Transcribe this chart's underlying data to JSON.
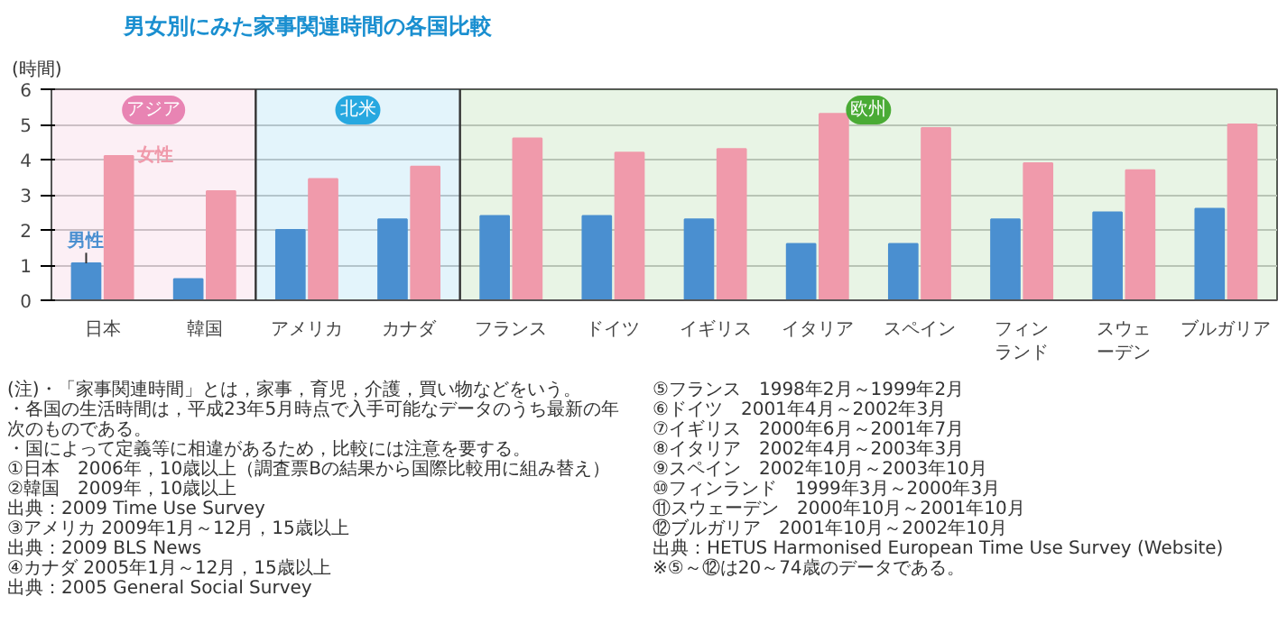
{
  "chart_data": {
    "type": "bar",
    "title": "男女別にみた家事関連時間の各国比較",
    "ylabel": "(時間)",
    "categories": [
      "日本",
      "韓国",
      "アメリカ",
      "カナダ",
      "フランス",
      "ドイツ",
      "イギリス",
      "イタリア",
      "スペイン",
      "フィンランド",
      "スウェーデン",
      "ブルガリア"
    ],
    "series": [
      {
        "name": "男性",
        "color": "#4a8fd0",
        "values": [
          1.05,
          0.6,
          2.0,
          2.3,
          2.4,
          2.4,
          2.3,
          1.6,
          1.6,
          2.3,
          2.5,
          2.6
        ]
      },
      {
        "name": "女性",
        "color": "#f09aab",
        "values": [
          4.1,
          3.1,
          3.45,
          3.8,
          4.6,
          4.2,
          4.3,
          5.3,
          4.9,
          3.9,
          3.7,
          5.0
        ]
      }
    ],
    "ylim": [
      0,
      6
    ],
    "yticks": [
      0,
      1,
      2,
      3,
      4,
      5,
      6
    ],
    "grid": "y",
    "bands": [
      {
        "axis": "x",
        "from": "日本",
        "to": "韓国",
        "label": "アジア",
        "color": "#e884b3"
      },
      {
        "axis": "x",
        "from": "アメリカ",
        "to": "カナダ",
        "label": "北米",
        "color": "#27a8e0"
      },
      {
        "axis": "x",
        "from": "フランス",
        "to": "ブルガリア",
        "label": "欧州",
        "color": "#4aab35"
      }
    ],
    "annotations": [
      "(注)・「家事関連時間」とは，家事，育児，介護，買い物などをいう。",
      "・各国の生活時間は，平成23年5月時点で入手可能なデータのうち最新の年次のものである。",
      "・国によって定義等に相違があるため，比較には注意を要する。",
      "①日本　2006年，10歳以上（調査票Bの結果から国際比較用に組み替え）",
      "②韓国　2009年，10歳以上",
      "出典：2009 Time Use Survey",
      "③アメリカ 2009年1月～12月，15歳以上",
      "出典：2009 BLS News",
      "④カナダ 2005年1月～12月，15歳以上",
      "出典：2005 General Social Survey",
      "⑤フランス　1998年2月～1999年2月",
      "⑥ドイツ　2001年4月～2002年3月",
      "⑦イギリス　2000年6月～2001年7月",
      "⑧イタリア　2002年4月～2003年3月",
      "⑨スペイン　2002年10月～2003年10月",
      "⑩フィンランド　1999年3月～2000年3月",
      "⑪スウェーデン　2000年10月～2001年10月",
      "⑫ブルガリア　2001年10月～2002年10月",
      "出典：HETUS Harmonised European Time Use Survey (Website)",
      "※⑤～⑫は20～74歳のデータである。"
    ]
  }
}
